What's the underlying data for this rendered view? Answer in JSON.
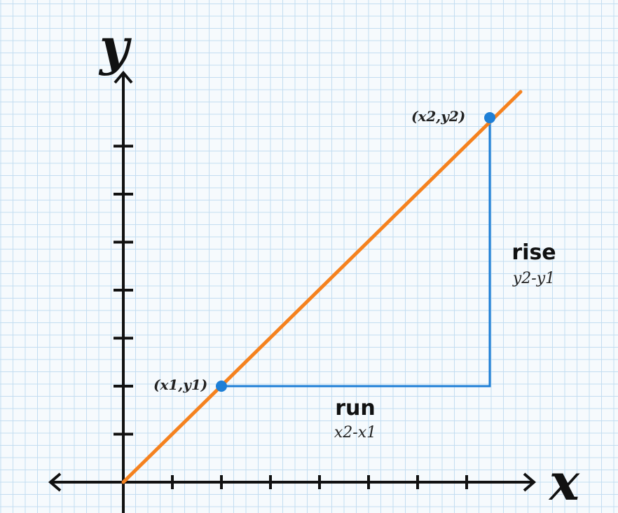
{
  "axes": {
    "x_title": "x",
    "y_title": "y"
  },
  "points": {
    "p1_label": "(x1,y1)",
    "p2_label": "(x2,y2)"
  },
  "rise": {
    "label": "rise",
    "formula": "y2-y1"
  },
  "run": {
    "label": "run",
    "formula": "x2-x1"
  },
  "colors": {
    "line": "#f5821f",
    "points_and_guides": "#1e7fd6",
    "axes": "#111111",
    "grid": "#bcd9ef",
    "background": "#f6fafd"
  }
}
